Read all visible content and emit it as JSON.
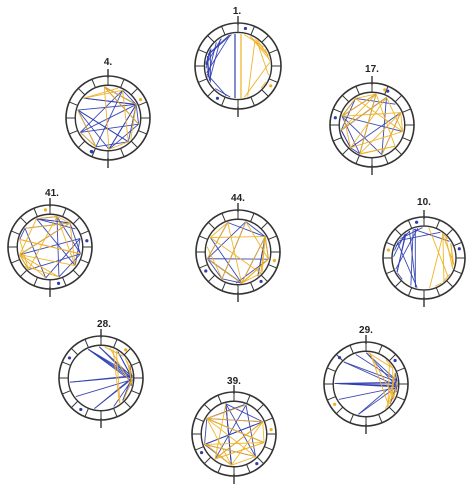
{
  "colors": {
    "background": "#ffffff",
    "outline": "#333333",
    "blue_lines": "#2f3fb0",
    "orange_lines": "#f0b020",
    "fill": "#ffffff"
  },
  "icons": {
    "dial": "ringed-circle-with-tick-marks"
  },
  "diagrams": [
    {
      "id": "d1",
      "label": "1.",
      "blue_lines": 14,
      "orange_lines": 12,
      "pattern": "split-left-right"
    },
    {
      "id": "d4",
      "label": "4.",
      "blue_lines": 22,
      "orange_lines": 10,
      "pattern": "crossing-web"
    },
    {
      "id": "d17",
      "label": "17.",
      "blue_lines": 16,
      "orange_lines": 18,
      "pattern": "star-mesh"
    },
    {
      "id": "d41",
      "label": "41.",
      "blue_lines": 18,
      "orange_lines": 18,
      "pattern": "dense-mesh"
    },
    {
      "id": "d44",
      "label": "44.",
      "blue_lines": 18,
      "orange_lines": 18,
      "pattern": "dense-mesh"
    },
    {
      "id": "d10",
      "label": "10.",
      "blue_lines": 14,
      "orange_lines": 10,
      "pattern": "left-heavy"
    },
    {
      "id": "d28",
      "label": "28.",
      "blue_lines": 20,
      "orange_lines": 8,
      "pattern": "fan-right"
    },
    {
      "id": "d29",
      "label": "29.",
      "blue_lines": 18,
      "orange_lines": 10,
      "pattern": "fan-right"
    },
    {
      "id": "d39",
      "label": "39.",
      "blue_lines": 16,
      "orange_lines": 18,
      "pattern": "dense-mesh"
    }
  ]
}
